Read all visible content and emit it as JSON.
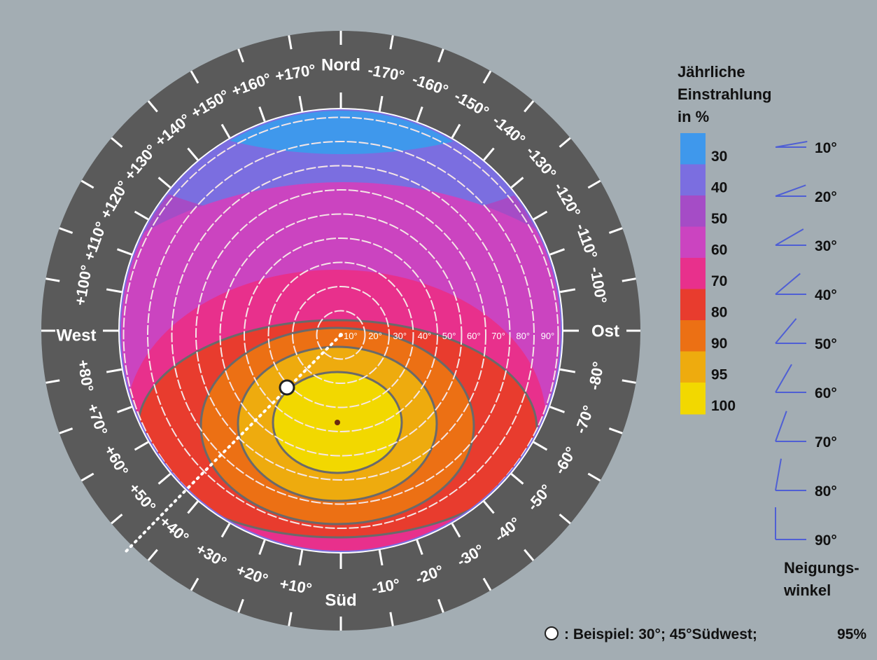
{
  "legend": {
    "title": [
      "Jährliche",
      "Einstrahlung",
      "in %"
    ],
    "items": [
      {
        "value": "30",
        "color": "#3f98ec"
      },
      {
        "value": "40",
        "color": "#7b6ee0"
      },
      {
        "value": "50",
        "color": "#a54cc6"
      },
      {
        "value": "60",
        "color": "#cb44c0"
      },
      {
        "value": "70",
        "color": "#e8308c"
      },
      {
        "value": "80",
        "color": "#e83c2e"
      },
      {
        "value": "90",
        "color": "#ec7014"
      },
      {
        "value": "95",
        "color": "#eeab0e"
      },
      {
        "value": "100",
        "color": "#f2d800"
      }
    ]
  },
  "tilt": {
    "angles": [
      "10°",
      "20°",
      "30°",
      "40°",
      "50°",
      "60°",
      "70°",
      "80°",
      "90°"
    ],
    "caption": [
      "Neigungs-",
      "winkel"
    ]
  },
  "compass": {
    "north": "Nord",
    "south": "Süd",
    "east": "Ost",
    "west": "West",
    "west_labels": [
      "+170°",
      "+160°",
      "+150°",
      "+140°",
      "+130°",
      "+120°",
      "+110°",
      "+100°",
      "+80°",
      "+70°",
      "+60°",
      "+50°",
      "+40°",
      "+30°",
      "+20°",
      "+10°"
    ],
    "east_labels": [
      "-170°",
      "-160°",
      "-150°",
      "-140°",
      "-130°",
      "-120°",
      "-110°",
      "-100°",
      "-80°",
      "-70°",
      "-60°",
      "-50°",
      "-40°",
      "-30°",
      "-20°",
      "-10°"
    ]
  },
  "radial_labels": [
    "10°",
    "20°",
    "30°",
    "40°",
    "50°",
    "60°",
    "70°",
    "80°",
    "90°"
  ],
  "example": {
    "text": ": Beispiel: 30°; 45°Südwest;",
    "value": "95%"
  },
  "colors": {
    "background": "#a3adb3",
    "ring": "#5a5a5a",
    "tilt_icon": "#4f5fd4"
  }
}
